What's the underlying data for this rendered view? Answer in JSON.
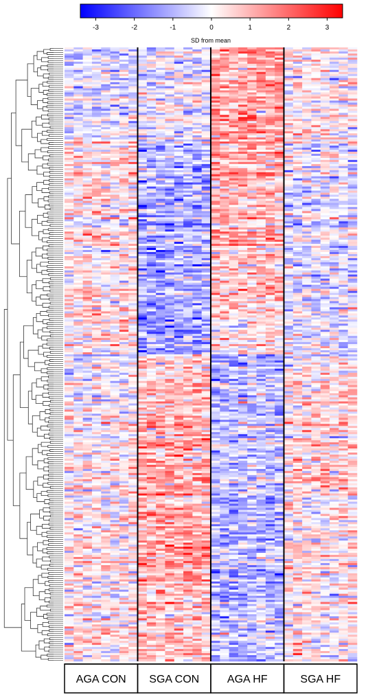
{
  "chart_data": {
    "type": "heatmap",
    "title": "",
    "colorbar": {
      "title": "SD from mean",
      "ticks": [
        -3,
        -2,
        -1,
        0,
        1,
        2,
        3
      ],
      "tick_labels": [
        "-3",
        "-2",
        "-1",
        "0",
        "1",
        "2",
        "3"
      ],
      "range": [
        -3.4,
        3.4
      ],
      "colors": {
        "low": "#0000ff",
        "mid": "#ffffff",
        "high": "#ff0000"
      }
    },
    "groups": [
      {
        "label": "AGA CON",
        "columns": 8
      },
      {
        "label": "SGA CON",
        "columns": 8
      },
      {
        "label": "AGA HF",
        "columns": 8
      },
      {
        "label": "SGA HF",
        "columns": 8
      }
    ],
    "row_count": 300,
    "dendrogram": "left",
    "gene_clusters": [
      {
        "rows": [
          0,
          45
        ],
        "group_means": [
          -0.4,
          -0.2,
          1.3,
          0.2
        ]
      },
      {
        "rows": [
          45,
          125
        ],
        "group_means": [
          0.3,
          -1.0,
          0.9,
          -0.3
        ]
      },
      {
        "rows": [
          125,
          150
        ],
        "group_means": [
          0.4,
          -1.1,
          0.4,
          -0.3
        ]
      },
      {
        "rows": [
          150,
          215
        ],
        "group_means": [
          0.0,
          0.9,
          -0.8,
          0.4
        ]
      },
      {
        "rows": [
          215,
          268
        ],
        "group_means": [
          0.1,
          1.0,
          -1.1,
          0.2
        ]
      },
      {
        "rows": [
          268,
          300
        ],
        "group_means": [
          0.2,
          0.6,
          -0.9,
          0.1
        ]
      }
    ]
  }
}
